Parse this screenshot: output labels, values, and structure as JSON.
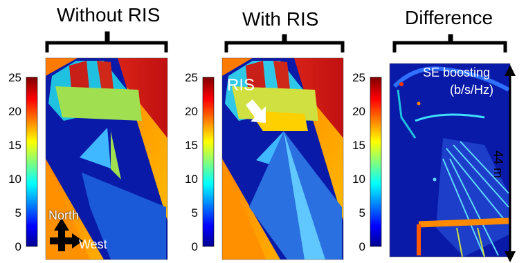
{
  "panels": [
    {
      "title": "Without RIS"
    },
    {
      "title": "With RIS"
    },
    {
      "title": "Difference"
    }
  ],
  "colorbar": {
    "ticks": [
      "25",
      "20",
      "15",
      "10",
      "5",
      "0"
    ],
    "colors": [
      "#00008f",
      "#0000ff",
      "#0080ff",
      "#00ffff",
      "#80ff80",
      "#ffff00",
      "#ff8000",
      "#ff0000",
      "#800000"
    ]
  },
  "annotations": {
    "ris_label": "RIS",
    "north": "North",
    "west": "West",
    "se_boost_line1": "SE boosting",
    "se_boost_line2": "(b/s/Hz)",
    "scale": "44 m"
  }
}
